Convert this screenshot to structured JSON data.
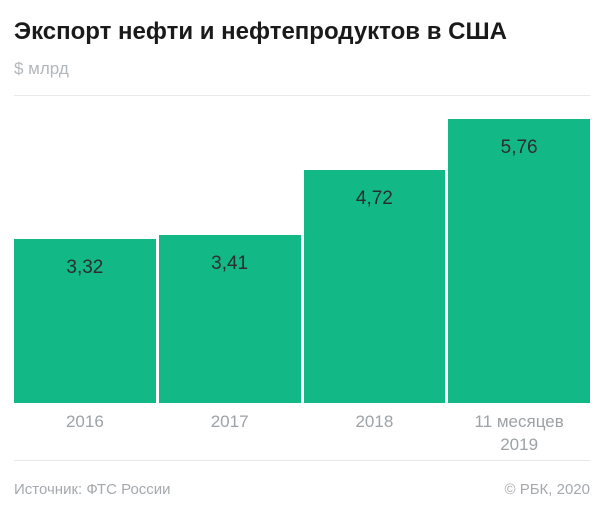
{
  "header": {
    "title": "Экспорт нефти и нефтепродуктов в США",
    "units": "$ млрд"
  },
  "chart_data": {
    "type": "bar",
    "title": "Экспорт нефти и нефтепродуктов в США",
    "subtitle": "$ млрд",
    "categories": [
      "2016",
      "2017",
      "2018",
      "11 месяцев\n2019"
    ],
    "values": [
      3.32,
      3.41,
      4.72,
      5.76
    ],
    "value_labels": [
      "3,32",
      "3,41",
      "4,72",
      "5,76"
    ],
    "xlabel": "",
    "ylabel": "$ млрд",
    "ylim": [
      0,
      6.23
    ],
    "grid": "single top gridline only",
    "legend": "none",
    "bar_color": "#12b886",
    "value_label_color": "#2d2d2d",
    "tick_label_color": "#9da2a6"
  },
  "footer": {
    "source": "Источник: ФТС России",
    "copyright": "© РБК, 2020"
  },
  "colors": {
    "bar": "#12b886",
    "title": "#1a1a1a",
    "muted_gray": "#a5a9ad",
    "grid_line": "#e8e8e8",
    "background": "#ffffff"
  }
}
